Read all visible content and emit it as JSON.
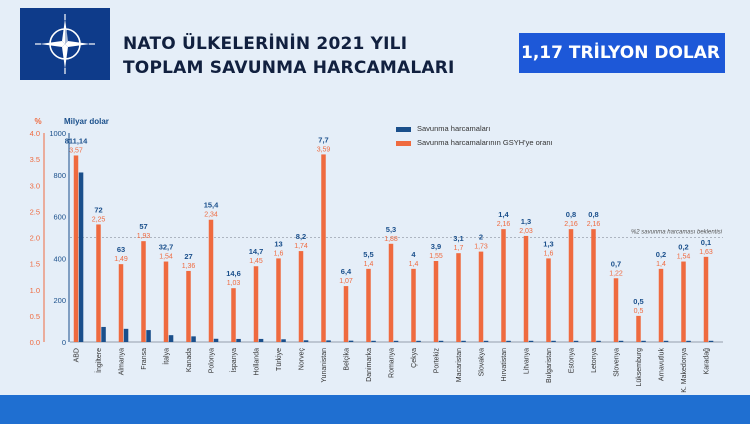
{
  "title_line1": "NATO ÜLKELERİNİN 2021 YILI",
  "title_line2": "TOPLAM SAVUNMA HARCAMALARI",
  "badge": "1,17 TRİLYON DOLAR",
  "colors": {
    "spending": "#1a4f8b",
    "ratio": "#ef6a3f",
    "left_axis": "#ef6a3f",
    "title": "#11203f",
    "badge_bg": "#1d58d8",
    "footer": "#1f6fd1"
  },
  "icons": {
    "logo": "nato-compass-star-icon"
  },
  "chart_data": {
    "type": "bar",
    "ylabel_left": "%",
    "ylabel_right": "Milyar dolar",
    "ylim_left": [
      0,
      4.0
    ],
    "ylim_right": [
      0,
      1000
    ],
    "ticks_left": [
      "0.0",
      "0.5",
      "1.0",
      "1.5",
      "2.0",
      "2.5",
      "3.0",
      "3.5",
      "4.0"
    ],
    "ticks_right": [
      "0",
      "200",
      "400",
      "600",
      "800",
      "1000"
    ],
    "threshold": {
      "value": 2.0,
      "label": "%2 savunma harcaması beklentisi"
    },
    "legend": [
      "Savunma harcamaları",
      "Savunma harcamalarının GSYH'ye oranı"
    ],
    "categories": [
      "ABD",
      "İngiltere",
      "Almanya",
      "Fransa",
      "İtalya",
      "Kanada",
      "Polonya",
      "İspanya",
      "Hollanda",
      "Türkiye",
      "Norveç",
      "Yunanistan",
      "Belçika",
      "Danimarka",
      "Romanya",
      "Çekya",
      "Portekiz",
      "Macaristan",
      "Slovakya",
      "Hırvatistan",
      "Litvanya",
      "Bulgaristan",
      "Estonya",
      "Letonya",
      "Slovenya",
      "Lüksemburg",
      "Arnavutluk",
      "K. Makedonya",
      "Karadağ"
    ],
    "series": [
      {
        "name": "Savunma harcamaları",
        "values": [
          811.14,
          72,
          63,
          57,
          32.7,
          27,
          15.4,
          14.6,
          14.7,
          13,
          8.2,
          7.7,
          6.4,
          5.5,
          5.3,
          4,
          3.9,
          3.1,
          2,
          1.4,
          1.3,
          1.3,
          0.8,
          0.8,
          0.7,
          0.5,
          0.2,
          0.2,
          0.1
        ],
        "labels": [
          "811,14",
          "72",
          "63",
          "57",
          "32,7",
          "27",
          "15,4",
          "14,6",
          "14,7",
          "13",
          "8,2",
          "7,7",
          "6,4",
          "5,5",
          "5,3",
          "4",
          "3,9",
          "3,1",
          "2",
          "1,4",
          "1,3",
          "1,3",
          "0,8",
          "0,8",
          "0,7",
          "0,5",
          "0,2",
          "0,2",
          "0,1"
        ]
      },
      {
        "name": "Savunma harcamalarının GSYH'ye oranı",
        "values": [
          3.57,
          2.25,
          1.49,
          1.93,
          1.54,
          1.36,
          2.34,
          1.03,
          1.45,
          1.6,
          1.74,
          3.59,
          1.07,
          1.4,
          1.88,
          1.4,
          1.55,
          1.7,
          1.73,
          2.16,
          2.03,
          1.6,
          2.16,
          2.16,
          1.22,
          0.5,
          1.4,
          1.54,
          1.63
        ],
        "labels": [
          "3,57",
          "2,25",
          "1,49",
          "1,93",
          "1,54",
          "1,36",
          "2,34",
          "1,03",
          "1,45",
          "1,6",
          "1,74",
          "3,59",
          "1,07",
          "1,4",
          "1,88",
          "1,4",
          "1,55",
          "1,7",
          "1,73",
          "2,16",
          "2,03",
          "1,6",
          "2,16",
          "2,16",
          "1,22",
          "0,5",
          "1,4",
          "1,54",
          "1,63"
        ]
      }
    ]
  }
}
